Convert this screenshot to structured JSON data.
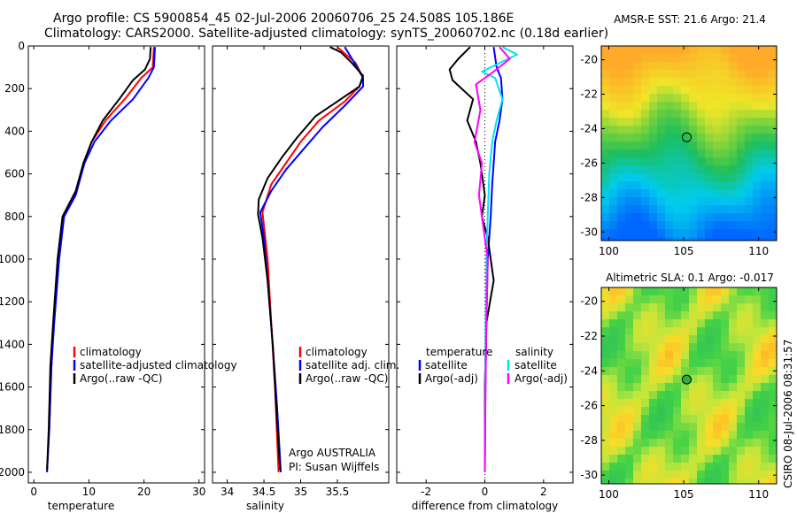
{
  "header": {
    "line1": "Argo profile: CS 5900854_45 02-Jul-2006 20060706_25 24.508S 105.186E",
    "line2": "Climatology: CARS2000. Satellite-adjusted climatology: synTS_20060702.nc (0.18d earlier)"
  },
  "colors": {
    "climatology": "#ff0000",
    "satellite": "#0000ff",
    "argo": "#000000",
    "sal_satellite": "#00e5ee",
    "sal_argo": "#ff00ff"
  },
  "chart_data": [
    {
      "id": "temperature",
      "type": "line",
      "xlabel": "temperature",
      "xlim": [
        -1,
        31
      ],
      "xticks": [
        0,
        10,
        20,
        30
      ],
      "ylim": [
        2050,
        0
      ],
      "yticks": [
        0,
        200,
        400,
        600,
        800,
        1000,
        1200,
        1400,
        1600,
        1800,
        2000
      ],
      "legend": {
        "location": "center-right",
        "labels": [
          "climatology",
          "satellite-adjusted climatology",
          "Argo(..raw -QC)"
        ]
      },
      "series": [
        {
          "name": "climatology",
          "color": "#ff0000",
          "points": [
            [
              21.8,
              5
            ],
            [
              21.6,
              100
            ],
            [
              19.5,
              150
            ],
            [
              16.5,
              250
            ],
            [
              13,
              350
            ],
            [
              10.5,
              450
            ],
            [
              9,
              550
            ],
            [
              7.5,
              700
            ],
            [
              5.3,
              800
            ],
            [
              4.5,
              1000
            ],
            [
              3.6,
              1300
            ],
            [
              3.2,
              1500
            ],
            [
              2.8,
              1800
            ],
            [
              2.4,
              1990
            ]
          ]
        },
        {
          "name": "satellite-adjusted climatology",
          "color": "#0000ff",
          "points": [
            [
              22,
              5
            ],
            [
              21.8,
              100
            ],
            [
              20.8,
              150
            ],
            [
              18,
              250
            ],
            [
              14,
              350
            ],
            [
              11,
              450
            ],
            [
              9.2,
              550
            ],
            [
              7.6,
              700
            ],
            [
              5.5,
              800
            ],
            [
              4.6,
              1000
            ],
            [
              3.7,
              1300
            ],
            [
              3.2,
              1500
            ],
            [
              2.8,
              1800
            ],
            [
              2.4,
              2000
            ]
          ]
        },
        {
          "name": "Argo(..raw -QC)",
          "color": "#000000",
          "points": [
            [
              21.2,
              5
            ],
            [
              21.1,
              60
            ],
            [
              20.2,
              110
            ],
            [
              18,
              160
            ],
            [
              15.5,
              250
            ],
            [
              12.5,
              350
            ],
            [
              10.5,
              450
            ],
            [
              9,
              550
            ],
            [
              7.6,
              680
            ],
            [
              5.2,
              800
            ],
            [
              4.3,
              1000
            ],
            [
              3.5,
              1300
            ],
            [
              3,
              1500
            ],
            [
              2.7,
              1800
            ],
            [
              2.4,
              1990
            ]
          ]
        }
      ]
    },
    {
      "id": "salinity",
      "type": "line",
      "xlabel": "salinity",
      "xlim": [
        33.8,
        36.2
      ],
      "xticks": [
        34,
        34.5,
        35,
        35.5
      ],
      "ylim": [
        2050,
        0
      ],
      "yticks": [
        0,
        200,
        400,
        600,
        800,
        1000,
        1200,
        1400,
        1600,
        1800,
        2000
      ],
      "legend": {
        "location": "center-right",
        "labels": [
          "climatology",
          "satellite adj. clim.",
          "Argo(..raw -QC)"
        ]
      },
      "annotations": [
        "Argo AUSTRALIA",
        "PI: Susan Wijffels"
      ],
      "series": [
        {
          "name": "climatology",
          "color": "#ff0000",
          "points": [
            [
              35.5,
              5
            ],
            [
              35.75,
              80
            ],
            [
              35.85,
              150
            ],
            [
              35.8,
              190
            ],
            [
              35.6,
              260
            ],
            [
              35.25,
              350
            ],
            [
              35,
              450
            ],
            [
              34.8,
              550
            ],
            [
              34.6,
              650
            ],
            [
              34.48,
              780
            ],
            [
              34.55,
              1000
            ],
            [
              34.6,
              1300
            ],
            [
              34.65,
              1600
            ],
            [
              34.7,
              2000
            ]
          ]
        },
        {
          "name": "satellite adj. clim.",
          "color": "#0000ff",
          "points": [
            [
              35.6,
              5
            ],
            [
              35.7,
              60
            ],
            [
              35.85,
              150
            ],
            [
              35.85,
              190
            ],
            [
              35.6,
              280
            ],
            [
              35.3,
              380
            ],
            [
              35.05,
              480
            ],
            [
              34.8,
              580
            ],
            [
              34.6,
              680
            ],
            [
              34.45,
              780
            ],
            [
              34.5,
              900
            ],
            [
              34.55,
              1100
            ],
            [
              34.62,
              1400
            ],
            [
              34.68,
              1700
            ],
            [
              34.73,
              2000
            ]
          ]
        },
        {
          "name": "Argo(..raw -QC)",
          "color": "#000000",
          "points": [
            [
              35.4,
              5
            ],
            [
              35.55,
              30
            ],
            [
              35.7,
              80
            ],
            [
              35.85,
              140
            ],
            [
              35.8,
              190
            ],
            [
              35.5,
              260
            ],
            [
              35.2,
              330
            ],
            [
              34.95,
              430
            ],
            [
              34.75,
              520
            ],
            [
              34.55,
              620
            ],
            [
              34.43,
              720
            ],
            [
              34.42,
              790
            ],
            [
              34.48,
              900
            ],
            [
              34.55,
              1100
            ],
            [
              34.62,
              1400
            ],
            [
              34.67,
              1700
            ],
            [
              34.72,
              1990
            ]
          ]
        }
      ]
    },
    {
      "id": "difference",
      "type": "line",
      "xlabel": "difference from climatology",
      "xlim": [
        -3,
        3
      ],
      "xticks": [
        -2,
        0,
        2
      ],
      "ylim": [
        2050,
        0
      ],
      "yticks": [
        0,
        200,
        400,
        600,
        800,
        1000,
        1200,
        1400,
        1600,
        1800,
        2000
      ],
      "legend": {
        "location": "center-right",
        "headers": [
          "temperature",
          "salinity"
        ],
        "labels": [
          "satellite",
          "Argo(-adj)",
          "satellite",
          "Argo(-adj)"
        ]
      },
      "series": [
        {
          "name": "temperature satellite",
          "color": "#0000ff",
          "points": [
            [
              0.3,
              5
            ],
            [
              0.4,
              100
            ],
            [
              0.55,
              150
            ],
            [
              0.6,
              250
            ],
            [
              0.5,
              350
            ],
            [
              0.35,
              450
            ],
            [
              0.3,
              550
            ],
            [
              0.25,
              650
            ],
            [
              0.2,
              800
            ],
            [
              0.1,
              1000
            ],
            [
              0.05,
              1300
            ],
            [
              0.02,
              1600
            ],
            [
              0,
              2000
            ]
          ]
        },
        {
          "name": "temperature Argo(-adj)",
          "color": "#000000",
          "points": [
            [
              -0.5,
              5
            ],
            [
              -0.9,
              60
            ],
            [
              -1.2,
              110
            ],
            [
              -1.1,
              160
            ],
            [
              -0.4,
              250
            ],
            [
              -0.6,
              350
            ],
            [
              -0.3,
              450
            ],
            [
              -0.15,
              550
            ],
            [
              0,
              700
            ],
            [
              -0.1,
              800
            ],
            [
              0.1,
              900
            ],
            [
              0.3,
              1100
            ],
            [
              0.05,
              1300
            ],
            [
              0,
              1600
            ],
            [
              0,
              2000
            ]
          ]
        },
        {
          "name": "salinity satellite",
          "color": "#00e5ee",
          "points": [
            [
              0.6,
              5
            ],
            [
              1.1,
              40
            ],
            [
              -0.1,
              120
            ],
            [
              0.35,
              150
            ],
            [
              0.6,
              250
            ],
            [
              0.4,
              350
            ],
            [
              0.25,
              450
            ],
            [
              0.15,
              600
            ],
            [
              0.1,
              800
            ],
            [
              0.05,
              1000
            ],
            [
              0.03,
              1300
            ],
            [
              0.01,
              1600
            ],
            [
              0,
              2000
            ]
          ]
        },
        {
          "name": "salinity Argo(-adj)",
          "color": "#ff00ff",
          "points": [
            [
              0.5,
              5
            ],
            [
              0.85,
              60
            ],
            [
              0.3,
              120
            ],
            [
              -0.3,
              180
            ],
            [
              -0.15,
              300
            ],
            [
              -0.35,
              450
            ],
            [
              -0.1,
              550
            ],
            [
              -0.2,
              700
            ],
            [
              -0.1,
              800
            ],
            [
              0.1,
              1000
            ],
            [
              0.05,
              1300
            ],
            [
              0.02,
              1600
            ],
            [
              0,
              2000
            ]
          ]
        }
      ]
    }
  ],
  "maps": [
    {
      "id": "sst",
      "title": "AMSR-E SST: 21.6 Argo: 21.4",
      "xticks": [
        100,
        105,
        110
      ],
      "yticks": [
        -20,
        -22,
        -24,
        -26,
        -28,
        -30
      ],
      "xlim": [
        99.5,
        111.2
      ],
      "ylim": [
        -30.5,
        -19.2
      ],
      "marker": [
        105.2,
        -24.5
      ]
    },
    {
      "id": "sla",
      "title": "Altimetric SLA: 0.1 Argo: -0.017",
      "xticks": [
        100,
        105,
        110
      ],
      "yticks": [
        -20,
        -22,
        -24,
        -26,
        -28,
        -30
      ],
      "xlim": [
        99.5,
        111.2
      ],
      "ylim": [
        -30.5,
        -19.2
      ],
      "marker": [
        105.2,
        -24.5
      ]
    }
  ],
  "footer": {
    "stamp": "CSIRO 08-Jul-2006 08:31:57"
  }
}
